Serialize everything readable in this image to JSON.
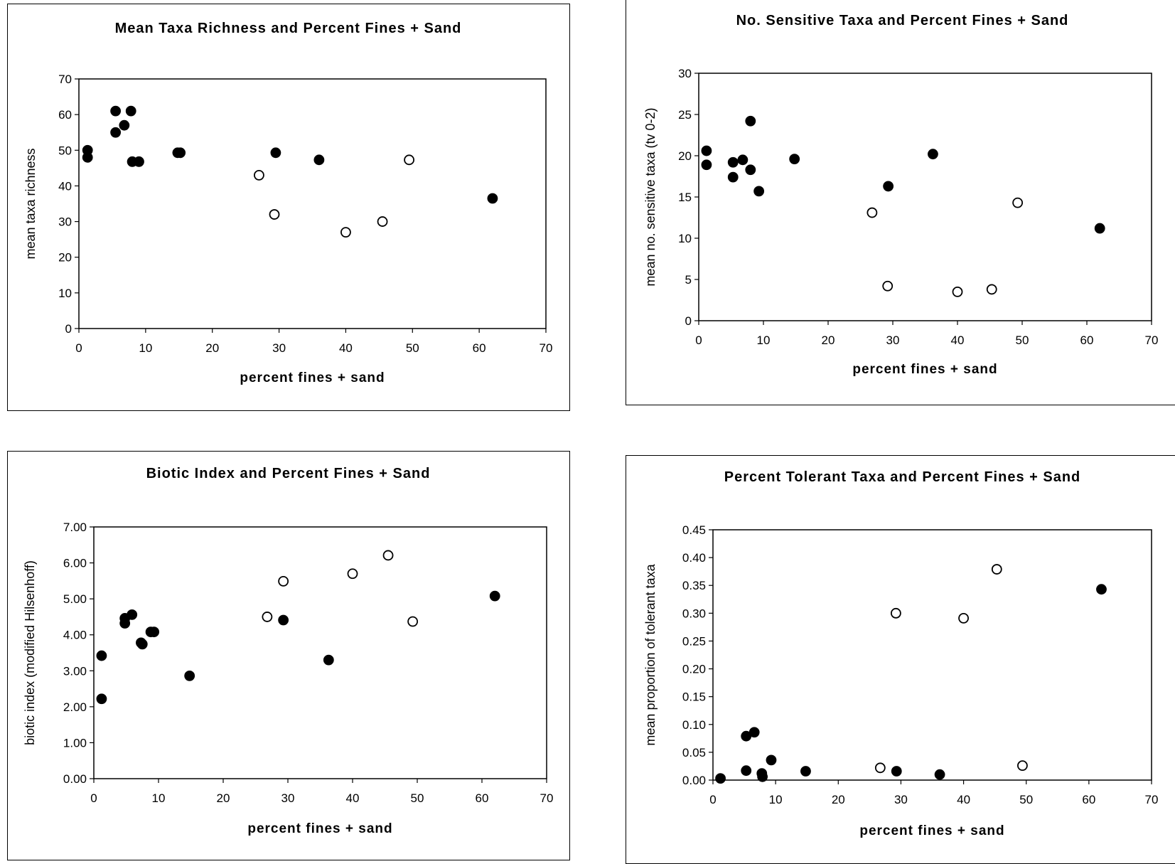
{
  "chart_data": [
    {
      "type": "scatter",
      "title": "Mean Taxa Richness and Percent Fines + Sand",
      "xlabel": "percent fines + sand",
      "ylabel": "mean taxa richness",
      "xlim": [
        0,
        70
      ],
      "ylim": [
        0,
        70
      ],
      "xticks": [
        "0",
        "10",
        "20",
        "30",
        "40",
        "50",
        "60",
        "70"
      ],
      "yticks": [
        "0",
        "10",
        "20",
        "30",
        "40",
        "50",
        "60",
        "70"
      ],
      "grid": false,
      "series": [
        {
          "marker": "filled",
          "points": [
            [
              1.3,
              50
            ],
            [
              1.3,
              48
            ],
            [
              5.5,
              61
            ],
            [
              5.5,
              55
            ],
            [
              6.8,
              57
            ],
            [
              7.8,
              61
            ],
            [
              8,
              46.8
            ],
            [
              9,
              46.8
            ],
            [
              14.8,
              49.3
            ],
            [
              15.2,
              49.3
            ],
            [
              29.5,
              49.3
            ],
            [
              36,
              47.3
            ],
            [
              62,
              36.5
            ]
          ]
        },
        {
          "marker": "open",
          "points": [
            [
              27,
              43
            ],
            [
              29.3,
              32
            ],
            [
              40,
              27
            ],
            [
              45.5,
              30
            ],
            [
              49.5,
              47.3
            ]
          ]
        }
      ]
    },
    {
      "type": "scatter",
      "title": "No. Sensitive Taxa and Percent Fines + Sand",
      "xlabel": "percent fines + sand",
      "ylabel": "mean no. sensitive taxa (tv 0-2)",
      "xlim": [
        0,
        70
      ],
      "ylim": [
        0,
        30
      ],
      "xticks": [
        "0",
        "10",
        "20",
        "30",
        "40",
        "50",
        "60",
        "70"
      ],
      "yticks": [
        "0",
        "5",
        "10",
        "15",
        "20",
        "25",
        "30"
      ],
      "grid": false,
      "series": [
        {
          "marker": "filled",
          "points": [
            [
              1.2,
              20.6
            ],
            [
              1.2,
              18.9
            ],
            [
              5.3,
              19.2
            ],
            [
              5.3,
              17.4
            ],
            [
              6.8,
              19.5
            ],
            [
              8,
              24.2
            ],
            [
              8,
              18.3
            ],
            [
              9.3,
              15.7
            ],
            [
              14.8,
              19.6
            ],
            [
              29.3,
              16.3
            ],
            [
              36.2,
              20.2
            ],
            [
              62,
              11.2
            ]
          ]
        },
        {
          "marker": "open",
          "points": [
            [
              26.8,
              13.1
            ],
            [
              29.2,
              4.2
            ],
            [
              40,
              3.5
            ],
            [
              45.3,
              3.8
            ],
            [
              49.3,
              14.3
            ]
          ]
        }
      ]
    },
    {
      "type": "scatter",
      "title": "Biotic Index and Percent Fines + Sand",
      "xlabel": "percent fines + sand",
      "ylabel": "biotic index (modified Hilsenhoff)",
      "xlim": [
        0,
        70
      ],
      "ylim": [
        0,
        7
      ],
      "xticks": [
        "0",
        "10",
        "20",
        "30",
        "40",
        "50",
        "60",
        "70"
      ],
      "yticks": [
        "0.00",
        "1.00",
        "2.00",
        "3.00",
        "4.00",
        "5.00",
        "6.00",
        "7.00"
      ],
      "grid": false,
      "series": [
        {
          "marker": "filled",
          "points": [
            [
              1.2,
              3.42
            ],
            [
              1.2,
              2.22
            ],
            [
              4.8,
              4.46
            ],
            [
              4.8,
              4.32
            ],
            [
              5.9,
              4.56
            ],
            [
              7.3,
              3.78
            ],
            [
              7.5,
              3.74
            ],
            [
              8.8,
              4.08
            ],
            [
              9.3,
              4.08
            ],
            [
              14.8,
              2.86
            ],
            [
              29.3,
              4.41
            ],
            [
              36.3,
              3.3
            ],
            [
              62,
              5.08
            ]
          ]
        },
        {
          "marker": "open",
          "points": [
            [
              26.8,
              4.5
            ],
            [
              29.3,
              5.49
            ],
            [
              40,
              5.7
            ],
            [
              45.5,
              6.21
            ],
            [
              49.3,
              4.37
            ]
          ]
        }
      ]
    },
    {
      "type": "scatter",
      "title": "Percent Tolerant Taxa and Percent Fines + Sand",
      "xlabel": "percent fines + sand",
      "ylabel": "mean proportion of tolerant taxa",
      "xlim": [
        0,
        70
      ],
      "ylim": [
        0,
        0.45
      ],
      "xticks": [
        "0",
        "10",
        "20",
        "30",
        "40",
        "50",
        "60",
        "70"
      ],
      "yticks": [
        "0.00",
        "0.05",
        "0.10",
        "0.15",
        "0.20",
        "0.25",
        "0.30",
        "0.35",
        "0.40",
        "0.45"
      ],
      "grid": false,
      "series": [
        {
          "marker": "filled",
          "points": [
            [
              1.2,
              0.003
            ],
            [
              5.3,
              0.079
            ],
            [
              6.6,
              0.086
            ],
            [
              5.3,
              0.017
            ],
            [
              7.8,
              0.012
            ],
            [
              7.9,
              0.006
            ],
            [
              9.3,
              0.036
            ],
            [
              14.8,
              0.016
            ],
            [
              29.3,
              0.016
            ],
            [
              36.2,
              0.01
            ],
            [
              62,
              0.343
            ]
          ]
        },
        {
          "marker": "open",
          "points": [
            [
              26.7,
              0.022
            ],
            [
              29.2,
              0.3
            ],
            [
              40,
              0.291
            ],
            [
              45.3,
              0.379
            ],
            [
              49.4,
              0.026
            ]
          ]
        }
      ]
    }
  ]
}
